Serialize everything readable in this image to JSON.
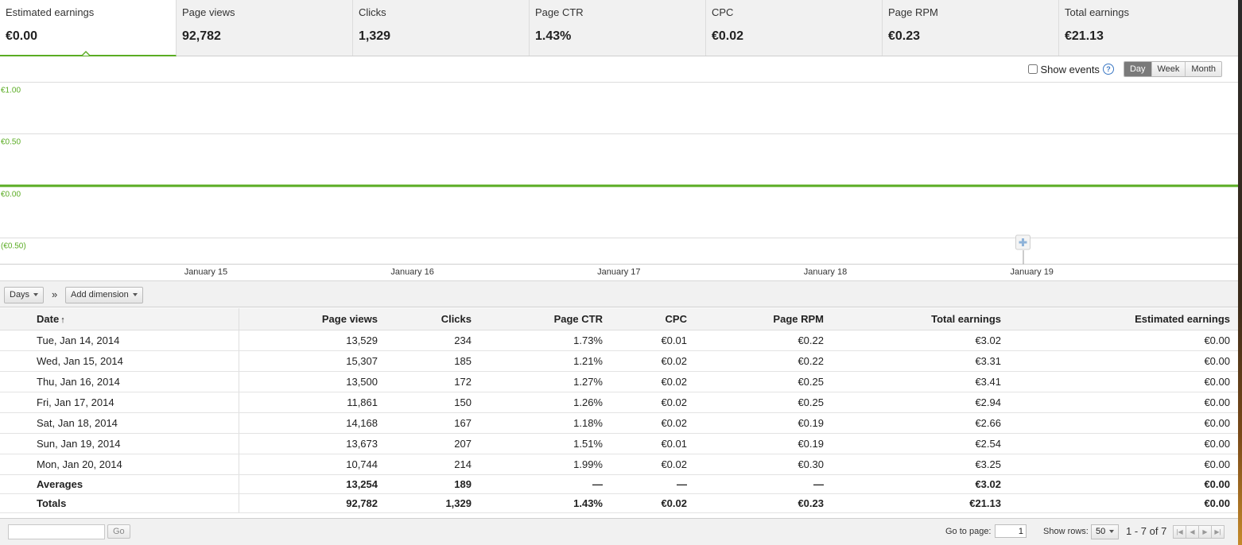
{
  "metrics": [
    {
      "label": "Estimated earnings",
      "value": "€0.00"
    },
    {
      "label": "Page views",
      "value": "92,782"
    },
    {
      "label": "Clicks",
      "value": "1,329"
    },
    {
      "label": "Page CTR",
      "value": "1.43%"
    },
    {
      "label": "CPC",
      "value": "€0.02"
    },
    {
      "label": "Page RPM",
      "value": "€0.23"
    },
    {
      "label": "Total earnings",
      "value": "€21.13"
    }
  ],
  "toolbar": {
    "show_events": "Show events",
    "help_glyph": "?",
    "periods": [
      "Day",
      "Week",
      "Month"
    ],
    "active_period": "Day"
  },
  "chart_data": {
    "type": "line",
    "y_tick_labels": [
      "€1.00",
      "€0.50",
      "€0.00",
      "(€0.50)"
    ],
    "y_ticks": [
      1.0,
      0.5,
      0.0,
      -0.5
    ],
    "ylim": [
      -0.75,
      1.0
    ],
    "x_tick_labels": [
      "January 15",
      "January 16",
      "January 17",
      "January 18",
      "January 19"
    ],
    "x": [
      "Jan 14",
      "Jan 15",
      "Jan 16",
      "Jan 17",
      "Jan 18",
      "Jan 19",
      "Jan 20"
    ],
    "series": [
      {
        "values": [
          0,
          0,
          0,
          0,
          0,
          0,
          0
        ],
        "color": "#5aac23"
      }
    ],
    "grid": true,
    "annotation_icon": "plus-marker-icon"
  },
  "dimensions": {
    "days_label": "Days",
    "separator": "»",
    "add_label": "Add dimension"
  },
  "table": {
    "columns": [
      "Date",
      "Page views",
      "Clicks",
      "Page CTR",
      "CPC",
      "Page RPM",
      "Total earnings",
      "Estimated earnings"
    ],
    "sort_glyph": "↑",
    "rows": [
      [
        "Tue, Jan 14, 2014",
        "13,529",
        "234",
        "1.73%",
        "€0.01",
        "€0.22",
        "€3.02",
        "€0.00"
      ],
      [
        "Wed, Jan 15, 2014",
        "15,307",
        "185",
        "1.21%",
        "€0.02",
        "€0.22",
        "€3.31",
        "€0.00"
      ],
      [
        "Thu, Jan 16, 2014",
        "13,500",
        "172",
        "1.27%",
        "€0.02",
        "€0.25",
        "€3.41",
        "€0.00"
      ],
      [
        "Fri, Jan 17, 2014",
        "11,861",
        "150",
        "1.26%",
        "€0.02",
        "€0.25",
        "€2.94",
        "€0.00"
      ],
      [
        "Sat, Jan 18, 2014",
        "14,168",
        "167",
        "1.18%",
        "€0.02",
        "€0.19",
        "€2.66",
        "€0.00"
      ],
      [
        "Sun, Jan 19, 2014",
        "13,673",
        "207",
        "1.51%",
        "€0.01",
        "€0.19",
        "€2.54",
        "€0.00"
      ],
      [
        "Mon, Jan 20, 2014",
        "10,744",
        "214",
        "1.99%",
        "€0.02",
        "€0.30",
        "€3.25",
        "€0.00"
      ]
    ],
    "averages": [
      "Averages",
      "13,254",
      "189",
      "—",
      "—",
      "—",
      "€3.02",
      "€0.00"
    ],
    "totals": [
      "Totals",
      "92,782",
      "1,329",
      "1.43%",
      "€0.02",
      "€0.23",
      "€21.13",
      "€0.00"
    ]
  },
  "footer": {
    "go_label": "Go",
    "goto_label": "Go to page:",
    "page_value": "1",
    "show_rows_label": "Show rows:",
    "rows_value": "50",
    "range_text": "1 - 7 of 7",
    "pager_glyphs": [
      "|◀",
      "◀",
      "▶",
      "▶|"
    ]
  }
}
